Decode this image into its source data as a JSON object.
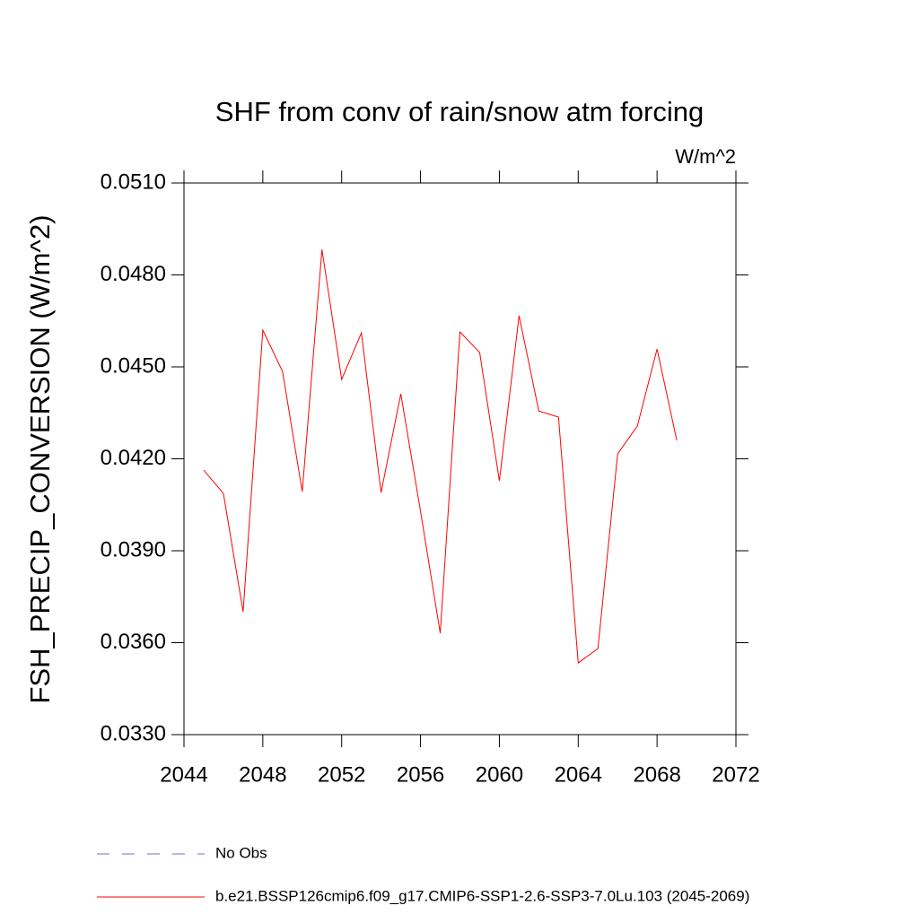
{
  "chart_data": {
    "type": "line",
    "title": "SHF from conv of rain/snow atm forcing",
    "units": "W/m^2",
    "y_label": "FSH_PRECIP_CONVERSION  (W/m^2)",
    "x": [
      2045,
      2046,
      2047,
      2048,
      2049,
      2050,
      2051,
      2052,
      2053,
      2054,
      2055,
      2056,
      2057,
      2058,
      2059,
      2060,
      2061,
      2062,
      2063,
      2064,
      2065,
      2066,
      2067,
      2068,
      2069
    ],
    "series": [
      {
        "name": "No Obs",
        "color": "#7b68c8",
        "dash": true,
        "values": [
          null,
          null,
          null,
          null,
          null,
          null,
          null,
          null,
          null,
          null,
          null,
          null,
          null,
          null,
          null,
          null,
          null,
          null,
          null,
          null,
          null,
          null,
          null,
          null,
          null
        ]
      },
      {
        "name": "b.e21.BSSP126cmip6.f09_g17.CMIP6-SSP1-2.6-SSP3-7.0Lu.103 (2045-2069)",
        "color": "#ff0000",
        "dash": false,
        "values": [
          0.04163,
          0.04087,
          0.03701,
          0.0462,
          0.04485,
          0.04093,
          0.04883,
          0.04459,
          0.04611,
          0.0409,
          0.04412,
          0.04029,
          0.03631,
          0.04614,
          0.04547,
          0.04128,
          0.04667,
          0.04356,
          0.04336,
          0.03534,
          0.03581,
          0.04216,
          0.04307,
          0.04558,
          0.0426
        ]
      }
    ],
    "xlim": [
      2044,
      2072
    ],
    "xticks": [
      2044,
      2048,
      2052,
      2056,
      2060,
      2064,
      2068,
      2072
    ],
    "ylim": [
      0.033,
      0.051
    ],
    "yticks": [
      {
        "value": 0.033,
        "label": "0.0330"
      },
      {
        "value": 0.036,
        "label": "0.0360"
      },
      {
        "value": 0.039,
        "label": "0.0390"
      },
      {
        "value": 0.042,
        "label": "0.0420"
      },
      {
        "value": 0.045,
        "label": "0.0450"
      },
      {
        "value": 0.048,
        "label": "0.0480"
      },
      {
        "value": 0.051,
        "label": "0.0510"
      }
    ]
  }
}
